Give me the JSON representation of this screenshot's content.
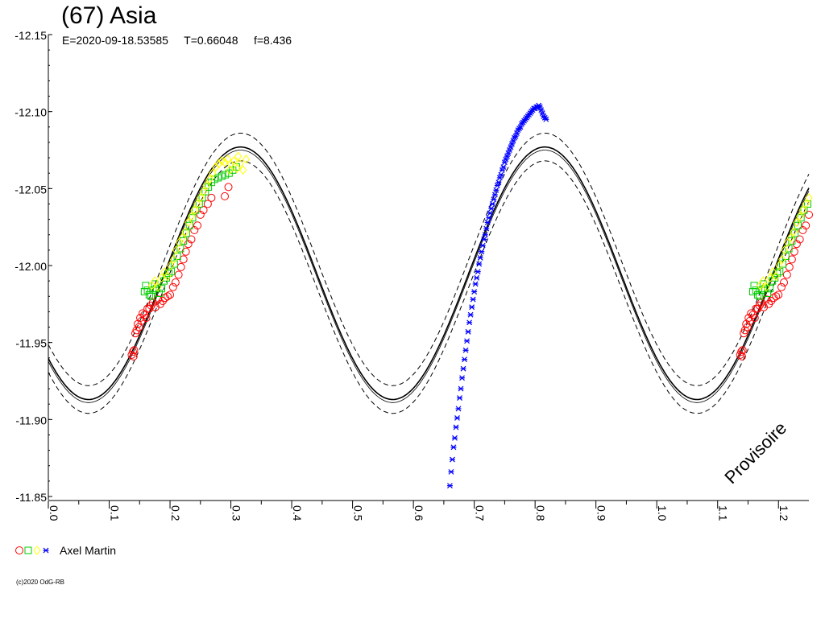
{
  "title": "(67) Asia",
  "subtitle_parts": {
    "epoch": "E=2020-09-18.53585",
    "period": "T=0.66048",
    "frequency": "f=8.436"
  },
  "watermark": "Provisoire",
  "credit": "(c)2020 OdG-RB",
  "legend": {
    "label": "Axel Martin",
    "colors": [
      "#ff0000",
      "#00cc00",
      "#ffff00",
      "#0000ff"
    ]
  },
  "chart_data": {
    "type": "scatter",
    "title": "(67) Asia",
    "xlabel": "",
    "ylabel": "",
    "xlim": [
      0.0,
      1.25
    ],
    "ylim": [
      -12.15,
      -11.85
    ],
    "y_inverted": true,
    "grid": false,
    "x_ticks": [
      "0.0",
      "0.1",
      "0.2",
      "0.3",
      "0.4",
      "0.5",
      "0.6",
      "0.7",
      "0.8",
      "0.9",
      "1.0",
      "1.1",
      "1.2"
    ],
    "y_ticks": [
      "-12.15",
      "-12.10",
      "-12.05",
      "-12.00",
      "-11.95",
      "-11.90",
      "-11.85"
    ],
    "fit_curve": {
      "description": "Fourier fit with uncertainty envelope",
      "mean": -11.995,
      "amplitude": 0.082,
      "period_in_phase": 0.5,
      "maximum_phase": 0.316,
      "envelope": 0.009
    },
    "series": [
      {
        "color": "#ff0000",
        "marker": "circle",
        "points": [
          [
            0.137,
            -11.942
          ],
          [
            0.139,
            -11.944
          ],
          [
            0.141,
            -11.945
          ],
          [
            0.14,
            -11.941
          ],
          [
            0.143,
            -11.956
          ],
          [
            0.145,
            -11.958
          ],
          [
            0.147,
            -11.962
          ],
          [
            0.149,
            -11.96
          ],
          [
            0.151,
            -11.966
          ],
          [
            0.153,
            -11.964
          ],
          [
            0.155,
            -11.969
          ],
          [
            0.158,
            -11.968
          ],
          [
            0.161,
            -11.966
          ],
          [
            0.163,
            -11.972
          ],
          [
            0.166,
            -11.972
          ],
          [
            0.169,
            -11.974
          ],
          [
            0.172,
            -11.976
          ],
          [
            0.176,
            -11.973
          ],
          [
            0.18,
            -11.978
          ],
          [
            0.184,
            -11.975
          ],
          [
            0.188,
            -11.977
          ],
          [
            0.192,
            -11.979
          ],
          [
            0.196,
            -11.98
          ],
          [
            0.2,
            -11.981
          ],
          [
            0.205,
            -11.986
          ],
          [
            0.209,
            -11.989
          ],
          [
            0.214,
            -11.994
          ],
          [
            0.218,
            -11.999
          ],
          [
            0.222,
            -12.004
          ],
          [
            0.226,
            -12.009
          ],
          [
            0.23,
            -12.014
          ],
          [
            0.235,
            -12.017
          ],
          [
            0.24,
            -12.023
          ],
          [
            0.245,
            -12.026
          ],
          [
            0.25,
            -12.033
          ],
          [
            0.255,
            -12.036
          ],
          [
            0.262,
            -12.04
          ],
          [
            0.268,
            -12.044
          ],
          [
            0.29,
            -12.045
          ],
          [
            0.296,
            -12.051
          ]
        ]
      },
      {
        "color": "#00cc00",
        "marker": "square",
        "points": [
          [
            0.158,
            -11.983
          ],
          [
            0.16,
            -11.987
          ],
          [
            0.163,
            -11.984
          ],
          [
            0.166,
            -11.981
          ],
          [
            0.169,
            -11.98
          ],
          [
            0.172,
            -11.984
          ],
          [
            0.175,
            -11.988
          ],
          [
            0.178,
            -11.985
          ],
          [
            0.182,
            -11.982
          ],
          [
            0.186,
            -11.985
          ],
          [
            0.19,
            -11.99
          ],
          [
            0.194,
            -11.992
          ],
          [
            0.198,
            -11.995
          ],
          [
            0.202,
            -11.996
          ],
          [
            0.207,
            -12.001
          ],
          [
            0.212,
            -12.006
          ],
          [
            0.217,
            -12.011
          ],
          [
            0.222,
            -12.016
          ],
          [
            0.227,
            -12.021
          ],
          [
            0.232,
            -12.026
          ],
          [
            0.237,
            -12.031
          ],
          [
            0.242,
            -12.036
          ],
          [
            0.248,
            -12.04
          ],
          [
            0.253,
            -12.044
          ],
          [
            0.258,
            -12.048
          ],
          [
            0.263,
            -12.051
          ],
          [
            0.268,
            -12.054
          ],
          [
            0.273,
            -12.056
          ],
          [
            0.279,
            -12.057
          ],
          [
            0.285,
            -12.058
          ],
          [
            0.291,
            -12.059
          ],
          [
            0.297,
            -12.06
          ],
          [
            0.303,
            -12.062
          ],
          [
            0.309,
            -12.064
          ]
        ]
      },
      {
        "color": "#ffff00",
        "marker": "diamond",
        "points": [
          [
            0.17,
            -11.987
          ],
          [
            0.175,
            -11.99
          ],
          [
            0.18,
            -11.986
          ],
          [
            0.186,
            -11.992
          ],
          [
            0.191,
            -11.996
          ],
          [
            0.196,
            -11.993
          ],
          [
            0.201,
            -12.0
          ],
          [
            0.206,
            -12.004
          ],
          [
            0.21,
            -12.01
          ],
          [
            0.215,
            -12.015
          ],
          [
            0.22,
            -12.018
          ],
          [
            0.225,
            -12.022
          ],
          [
            0.23,
            -12.028
          ],
          [
            0.235,
            -12.032
          ],
          [
            0.24,
            -12.036
          ],
          [
            0.245,
            -12.04
          ],
          [
            0.25,
            -12.044
          ],
          [
            0.255,
            -12.048
          ],
          [
            0.26,
            -12.052
          ],
          [
            0.265,
            -12.056
          ],
          [
            0.27,
            -12.06
          ],
          [
            0.275,
            -12.064
          ],
          [
            0.28,
            -12.066
          ],
          [
            0.285,
            -12.068
          ],
          [
            0.29,
            -12.067
          ],
          [
            0.295,
            -12.069
          ],
          [
            0.3,
            -12.066
          ],
          [
            0.305,
            -12.068
          ],
          [
            0.31,
            -12.063
          ],
          [
            0.315,
            -12.066
          ],
          [
            0.32,
            -12.062
          ],
          [
            0.325,
            -12.069
          ],
          [
            0.312,
            -12.071
          ],
          [
            0.298,
            -12.062
          ]
        ]
      },
      {
        "color": "#0000ff",
        "marker": "star",
        "points": [
          [
            0.66,
            -11.857
          ],
          [
            0.662,
            -11.866
          ],
          [
            0.664,
            -11.874
          ],
          [
            0.666,
            -11.882
          ],
          [
            0.668,
            -11.888
          ],
          [
            0.67,
            -11.895
          ],
          [
            0.672,
            -11.901
          ],
          [
            0.674,
            -11.907
          ],
          [
            0.676,
            -11.914
          ],
          [
            0.678,
            -11.92
          ],
          [
            0.68,
            -11.927
          ],
          [
            0.682,
            -11.933
          ],
          [
            0.684,
            -11.939
          ],
          [
            0.686,
            -11.945
          ],
          [
            0.688,
            -11.951
          ],
          [
            0.69,
            -11.957
          ],
          [
            0.692,
            -11.963
          ],
          [
            0.694,
            -11.968
          ],
          [
            0.696,
            -11.973
          ],
          [
            0.698,
            -11.978
          ],
          [
            0.7,
            -11.983
          ],
          [
            0.702,
            -11.988
          ],
          [
            0.704,
            -11.992
          ],
          [
            0.706,
            -11.996
          ],
          [
            0.708,
            -12.001
          ],
          [
            0.71,
            -12.005
          ],
          [
            0.712,
            -12.009
          ],
          [
            0.714,
            -12.013
          ],
          [
            0.716,
            -12.017
          ],
          [
            0.718,
            -12.02
          ],
          [
            0.72,
            -12.024
          ],
          [
            0.722,
            -12.028
          ],
          [
            0.724,
            -12.031
          ],
          [
            0.726,
            -12.034
          ],
          [
            0.728,
            -12.037
          ],
          [
            0.73,
            -12.04
          ],
          [
            0.732,
            -12.043
          ],
          [
            0.734,
            -12.046
          ],
          [
            0.736,
            -12.049
          ],
          [
            0.738,
            -12.052
          ],
          [
            0.74,
            -12.054
          ],
          [
            0.742,
            -12.057
          ],
          [
            0.744,
            -12.059
          ],
          [
            0.746,
            -12.062
          ],
          [
            0.748,
            -12.064
          ],
          [
            0.75,
            -12.067
          ],
          [
            0.752,
            -12.069
          ],
          [
            0.754,
            -12.071
          ],
          [
            0.756,
            -12.073
          ],
          [
            0.758,
            -12.075
          ],
          [
            0.76,
            -12.077
          ],
          [
            0.762,
            -12.079
          ],
          [
            0.764,
            -12.081
          ],
          [
            0.766,
            -12.083
          ],
          [
            0.768,
            -12.084
          ],
          [
            0.77,
            -12.086
          ],
          [
            0.772,
            -12.088
          ],
          [
            0.774,
            -12.089
          ],
          [
            0.776,
            -12.09
          ],
          [
            0.778,
            -12.092
          ],
          [
            0.78,
            -12.093
          ],
          [
            0.782,
            -12.094
          ],
          [
            0.784,
            -12.095
          ],
          [
            0.786,
            -12.096
          ],
          [
            0.788,
            -12.097
          ],
          [
            0.79,
            -12.098
          ],
          [
            0.792,
            -12.099
          ],
          [
            0.794,
            -12.1
          ],
          [
            0.796,
            -12.101
          ],
          [
            0.798,
            -12.102
          ],
          [
            0.8,
            -12.102
          ],
          [
            0.802,
            -12.103
          ],
          [
            0.804,
            -12.103
          ],
          [
            0.806,
            -12.104
          ],
          [
            0.808,
            -12.103
          ],
          [
            0.81,
            -12.101
          ],
          [
            0.812,
            -12.099
          ],
          [
            0.814,
            -12.097
          ],
          [
            0.816,
            -12.096
          ],
          [
            0.818,
            -12.095
          ]
        ]
      }
    ]
  }
}
